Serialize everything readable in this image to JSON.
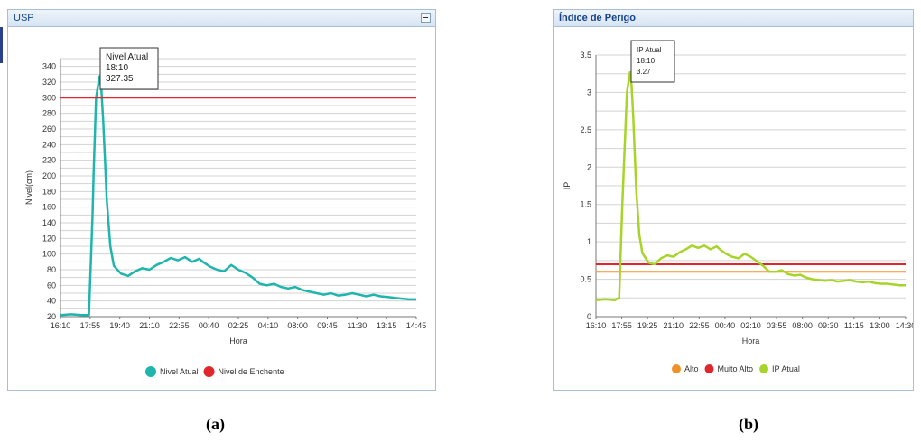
{
  "panels": [
    {
      "title": "USP",
      "caption": "(a)"
    },
    {
      "title": "Índice de Perigo",
      "caption": "(b)"
    }
  ],
  "chart_data": [
    {
      "type": "line",
      "title": "",
      "xlabel": "Hora",
      "ylabel": "Nivel(cm)",
      "ylim": [
        20,
        350
      ],
      "yticks": [
        20,
        40,
        60,
        80,
        100,
        120,
        140,
        160,
        180,
        200,
        220,
        240,
        260,
        280,
        300,
        320,
        340
      ],
      "xticks": [
        "16:10",
        "17:55",
        "19:40",
        "21:10",
        "22:55",
        "00:40",
        "02:25",
        "04:10",
        "08:00",
        "09:45",
        "11:30",
        "13:15",
        "14:45"
      ],
      "grid": "horizontal",
      "legend_position": "bottom",
      "colors": {
        "nivel_atual": "#1fb5ac",
        "nivel_enchente": "#e0252b"
      },
      "series": [
        {
          "name": "Nivel Atual",
          "x": [
            0,
            3,
            6,
            8,
            9,
            9.3,
            10,
            11,
            11.5,
            12,
            12.5,
            13,
            14,
            15,
            17,
            19,
            21,
            23,
            25,
            27,
            29,
            31,
            33,
            35,
            37,
            38,
            39,
            40,
            42,
            44,
            46,
            48,
            50,
            52,
            54,
            56,
            58,
            60,
            62,
            64,
            66,
            68,
            70,
            72,
            74,
            76,
            78,
            80,
            82,
            84,
            86,
            88,
            90,
            92,
            94,
            96,
            98,
            100
          ],
          "y": [
            22,
            23,
            22,
            22,
            150,
            200,
            300,
            327.35,
            310,
            270,
            220,
            170,
            110,
            85,
            75,
            72,
            78,
            82,
            80,
            86,
            90,
            95,
            92,
            96,
            90,
            92,
            94,
            90,
            84,
            80,
            78,
            86,
            80,
            76,
            70,
            62,
            60,
            62,
            58,
            56,
            58,
            54,
            52,
            50,
            48,
            50,
            47,
            48,
            50,
            48,
            46,
            48,
            46,
            45,
            44,
            43,
            42,
            42
          ]
        },
        {
          "name": "Nivel de Enchente",
          "x": [
            0,
            100
          ],
          "y": [
            300,
            300
          ]
        }
      ],
      "tooltip": {
        "label": "Nivel Atual",
        "time": "18:10",
        "value": "327.35"
      }
    },
    {
      "type": "line",
      "title": "",
      "xlabel": "Hora",
      "ylabel": "IP",
      "ylim": [
        0,
        3.5
      ],
      "yticks": [
        0,
        0.5,
        1,
        1.5,
        2,
        2.5,
        3,
        3.5
      ],
      "yticklabels": [
        "0",
        "0.5",
        "1",
        "1.5",
        "2",
        "2.5",
        "3",
        "3.5"
      ],
      "xticks": [
        "16:10",
        "17:55",
        "19:25",
        "21:10",
        "22:55",
        "00:40",
        "02:10",
        "03:55",
        "08:00",
        "09:30",
        "11:15",
        "13:00",
        "14:30"
      ],
      "grid": "horizontal",
      "legend_position": "bottom",
      "colors": {
        "alto": "#f0922a",
        "muito_alto": "#e0252b",
        "ip_atual": "#a8d42a"
      },
      "series": [
        {
          "name": "Alto",
          "x": [
            0,
            100
          ],
          "y": [
            0.6,
            0.6
          ]
        },
        {
          "name": "Muito Alto",
          "x": [
            0,
            100
          ],
          "y": [
            0.7,
            0.7
          ]
        },
        {
          "name": "IP Atual",
          "x": [
            0,
            3,
            6,
            7.5,
            8.5,
            9,
            10,
            11,
            11.5,
            12,
            12.5,
            13,
            14,
            15,
            17,
            19,
            21,
            23,
            25,
            27,
            29,
            31,
            33,
            35,
            37,
            38,
            39,
            40,
            42,
            44,
            46,
            48,
            50,
            52,
            54,
            56,
            58,
            60,
            62,
            64,
            66,
            68,
            70,
            72,
            74,
            76,
            78,
            80,
            82,
            84,
            86,
            88,
            90,
            92,
            94,
            96,
            98,
            100
          ],
          "y": [
            0.22,
            0.23,
            0.22,
            0.25,
            1.5,
            2.0,
            3.0,
            3.27,
            3.1,
            2.7,
            2.2,
            1.7,
            1.1,
            0.85,
            0.72,
            0.7,
            0.78,
            0.82,
            0.8,
            0.86,
            0.9,
            0.95,
            0.92,
            0.95,
            0.9,
            0.92,
            0.94,
            0.9,
            0.84,
            0.8,
            0.78,
            0.84,
            0.8,
            0.74,
            0.68,
            0.6,
            0.6,
            0.62,
            0.57,
            0.55,
            0.56,
            0.52,
            0.5,
            0.49,
            0.48,
            0.49,
            0.47,
            0.48,
            0.49,
            0.47,
            0.46,
            0.47,
            0.45,
            0.44,
            0.44,
            0.43,
            0.42,
            0.42
          ]
        }
      ],
      "tooltip": {
        "label": "IP Atual",
        "time": "18:10",
        "value": "3.27"
      }
    }
  ]
}
